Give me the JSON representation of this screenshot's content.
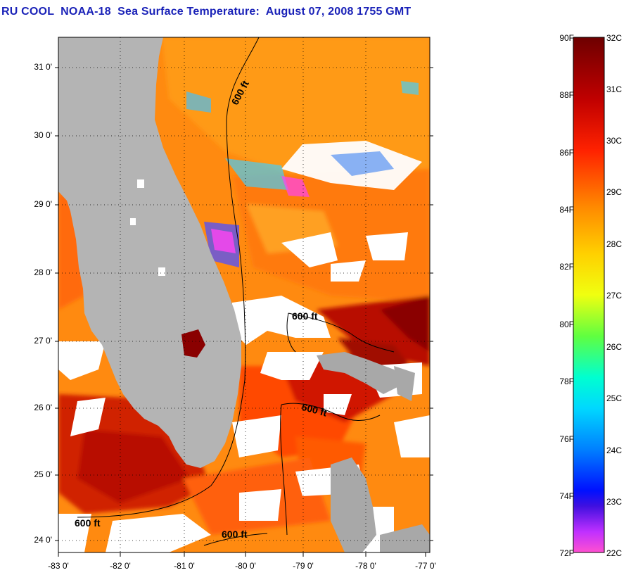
{
  "title": "RU COOL  NOAA-18  Sea Surface Temperature:  August 07, 2008 1755 GMT",
  "map": {
    "lat_labels": [
      "31 0'",
      "30 0'",
      "29 0'",
      "28 0'",
      "27 0'",
      "26 0'",
      "25 0'",
      "24 0'"
    ],
    "lon_labels": [
      "-83 0'",
      "-82 0'",
      "-81 0'",
      "-80 0'",
      "-79 0'",
      "-78 0'",
      "-77 0'"
    ],
    "contour_labels": [
      "600 ft",
      "600 ft",
      "600 ft",
      "600 ft",
      "600 ft"
    ]
  },
  "colorbar": {
    "fahrenheit_labels": [
      "90F",
      "88F",
      "86F",
      "84F",
      "82F",
      "80F",
      "78F",
      "76F",
      "74F",
      "72F"
    ],
    "celsius_labels": [
      "32C",
      "31C",
      "30C",
      "29C",
      "28C",
      "27C",
      "26C",
      "25C",
      "24C",
      "23C",
      "22C"
    ],
    "colors": [
      "#6e0000",
      "#b40000",
      "#ff1e00",
      "#ff7800",
      "#ffc800",
      "#ffff00",
      "#a0ff20",
      "#20ff90",
      "#00ffff",
      "#0090ff",
      "#0020ff",
      "#0000e0",
      "#8020ff",
      "#ff40ff",
      "#ff50d0"
    ]
  }
}
